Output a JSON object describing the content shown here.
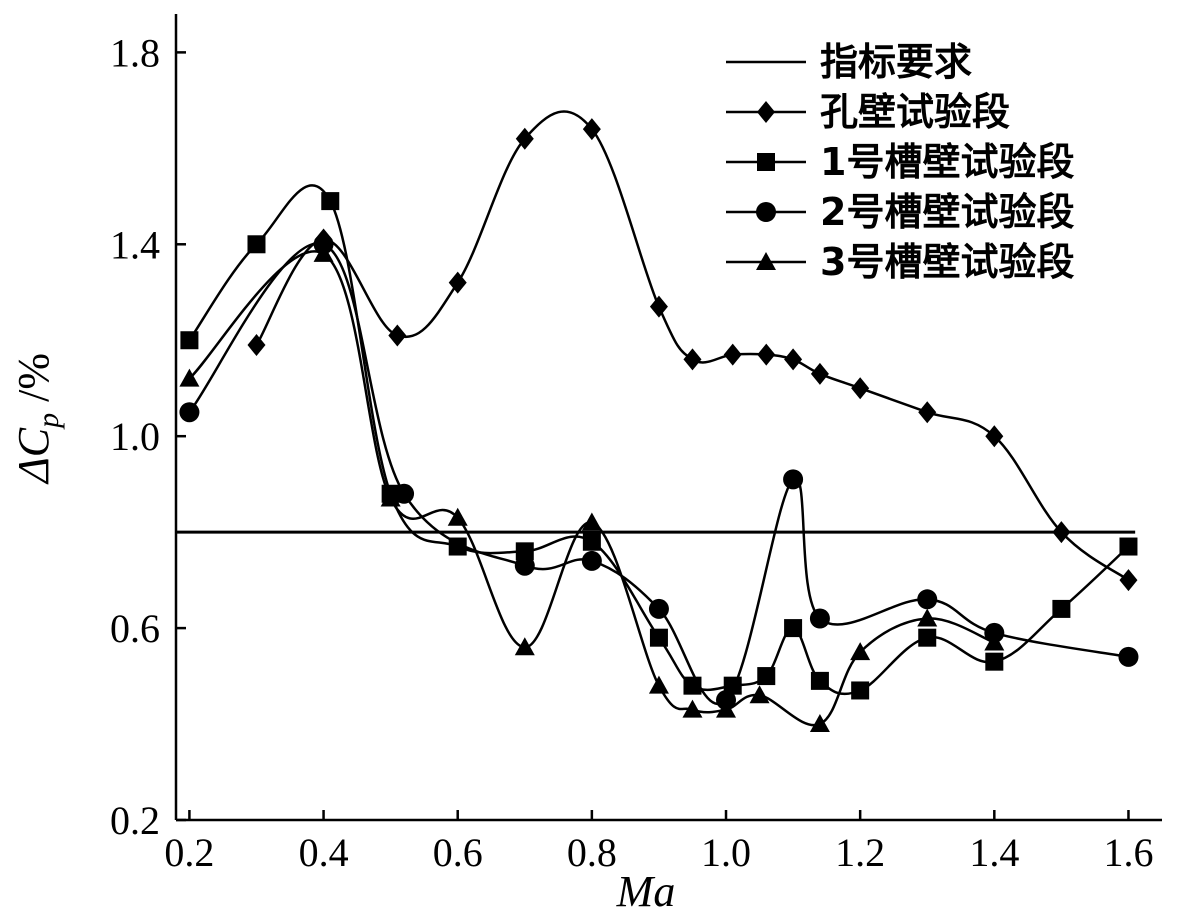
{
  "chart_data": {
    "type": "line",
    "xlabel": "Ma",
    "ylabel": {
      "prefix": "ΔC",
      "sub": "p",
      "suffix": " /%"
    },
    "xlim": [
      0.18,
      1.65
    ],
    "ylim": [
      0.2,
      1.88
    ],
    "x_ticks": [
      "0.2",
      "0.4",
      "0.6",
      "0.8",
      "1.0",
      "1.2",
      "1.4",
      "1.6"
    ],
    "y_ticks": [
      "0.2",
      "0.6",
      "1.0",
      "1.4",
      "1.8"
    ],
    "grid": false,
    "legend_position": "top-right",
    "reference_line": {
      "name": "指标要求",
      "y": 0.8,
      "x_range": [
        0.18,
        1.61
      ]
    },
    "series": [
      {
        "name": "孔壁试验段",
        "marker": "diamond",
        "x": [
          0.3,
          0.4,
          0.51,
          0.6,
          0.7,
          0.8,
          0.9,
          0.95,
          1.01,
          1.06,
          1.1,
          1.14,
          1.2,
          1.3,
          1.4,
          1.5,
          1.6
        ],
        "y": [
          1.19,
          1.41,
          1.21,
          1.32,
          1.62,
          1.64,
          1.27,
          1.16,
          1.17,
          1.17,
          1.16,
          1.13,
          1.1,
          1.05,
          1.0,
          0.8,
          0.7
        ]
      },
      {
        "name": "1号槽壁试验段",
        "marker": "square",
        "x": [
          0.2,
          0.3,
          0.41,
          0.5,
          0.6,
          0.7,
          0.8,
          0.9,
          0.95,
          1.01,
          1.06,
          1.1,
          1.14,
          1.2,
          1.3,
          1.4,
          1.5,
          1.6
        ],
        "y": [
          1.2,
          1.4,
          1.49,
          0.88,
          0.77,
          0.76,
          0.78,
          0.58,
          0.48,
          0.48,
          0.5,
          0.6,
          0.49,
          0.47,
          0.58,
          0.53,
          0.64,
          0.77
        ]
      },
      {
        "name": "2号槽壁试验段",
        "marker": "circle",
        "x": [
          0.2,
          0.4,
          0.52,
          0.7,
          0.8,
          0.9,
          1.0,
          1.1,
          1.14,
          1.3,
          1.4,
          1.6
        ],
        "y": [
          1.05,
          1.4,
          0.88,
          0.73,
          0.74,
          0.64,
          0.45,
          0.91,
          0.62,
          0.66,
          0.59,
          0.54
        ]
      },
      {
        "name": "3号槽壁试验段",
        "marker": "triangle",
        "x": [
          0.2,
          0.4,
          0.5,
          0.6,
          0.7,
          0.8,
          0.9,
          0.95,
          1.0,
          1.05,
          1.14,
          1.2,
          1.3,
          1.4
        ],
        "y": [
          1.12,
          1.38,
          0.87,
          0.83,
          0.56,
          0.82,
          0.48,
          0.43,
          0.43,
          0.46,
          0.4,
          0.55,
          0.62,
          0.57
        ]
      }
    ]
  }
}
